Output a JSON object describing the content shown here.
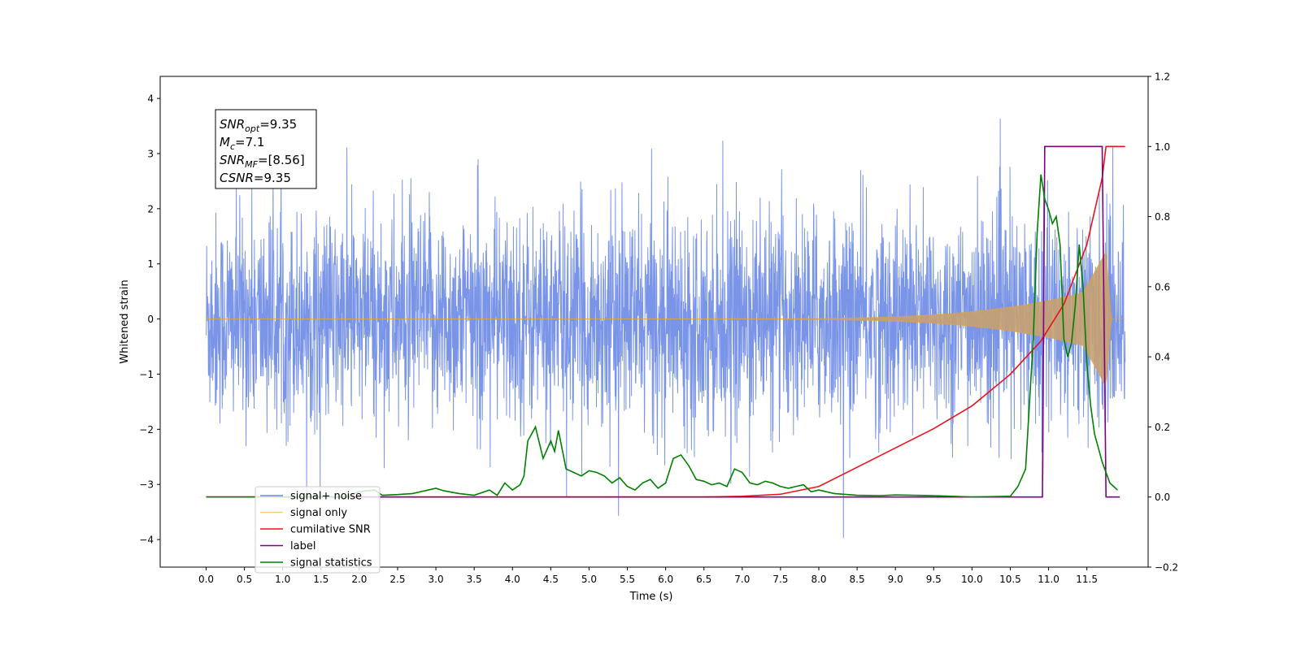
{
  "chart_data": {
    "type": "line",
    "xlabel": "Time (s)",
    "ylabel": "Whitened strain",
    "xlim": [
      -0.6,
      12.3
    ],
    "ylim_left": [
      -4.5,
      4.4
    ],
    "ylim_right": [
      -0.2,
      1.2
    ],
    "x_ticks": [
      "0.0",
      "0.5",
      "1.0",
      "1.5",
      "2.0",
      "2.5",
      "3.0",
      "3.5",
      "4.0",
      "4.5",
      "5.0",
      "5.5",
      "6.0",
      "6.5",
      "7.0",
      "7.5",
      "8.0",
      "8.5",
      "9.0",
      "9.5",
      "10.0",
      "10.5",
      "11.0",
      "11.5"
    ],
    "y_ticks_left": [
      "4",
      "3",
      "2",
      "1",
      "0",
      "−1",
      "−2",
      "−3",
      "−4"
    ],
    "y_ticks_right": [
      "1.2",
      "1.0",
      "0.8",
      "0.6",
      "0.4",
      "0.2",
      "0.0",
      "−0.2"
    ],
    "grid": false,
    "legend_position": "lower-left",
    "annotation": {
      "lines": [
        {
          "base": "SNR",
          "sub": "opt",
          "rest": "=9.35"
        },
        {
          "base": "M",
          "sub": "c",
          "rest": "=7.1"
        },
        {
          "base": "SNR",
          "sub": "MF",
          "rest": "=[8.56]"
        },
        {
          "base": "CSNR",
          "sub": "",
          "rest": "=9.35"
        }
      ]
    },
    "series": [
      {
        "name": "signal+ noise",
        "axis": "left",
        "color": "#6b8ae6",
        "kind": "noise",
        "x_range": [
          0,
          12.0
        ],
        "typical_amplitude": 2.0,
        "extreme_range": [
          -4.1,
          3.95
        ]
      },
      {
        "name": "signal only",
        "axis": "left",
        "color": "#ffa500",
        "kind": "chirp",
        "x_range": [
          0,
          12.0
        ],
        "start_growth": 7.5,
        "peak_time": 11.75,
        "peak_amplitude": 1.25
      },
      {
        "name": "cumilative SNR",
        "axis": "right",
        "color": "#e8141c",
        "x": [
          0.0,
          6.5,
          7.0,
          7.5,
          8.0,
          8.5,
          9.0,
          9.5,
          10.0,
          10.5,
          10.9,
          11.2,
          11.5,
          11.7,
          11.75,
          11.8,
          12.0
        ],
        "y": [
          0.0,
          0.0,
          0.002,
          0.008,
          0.03,
          0.085,
          0.14,
          0.195,
          0.26,
          0.35,
          0.445,
          0.55,
          0.72,
          0.91,
          1.0,
          1.0,
          1.0
        ]
      },
      {
        "name": "label",
        "axis": "right",
        "color": "#800080",
        "x": [
          0.0,
          10.92,
          10.95,
          11.7,
          11.75,
          11.93
        ],
        "y": [
          0.0,
          0.0,
          1.0,
          1.0,
          0.0,
          0.0
        ]
      },
      {
        "name": "signal statistics",
        "axis": "right",
        "color": "#008000",
        "x": [
          0.0,
          1.8,
          2.0,
          2.2,
          2.3,
          2.5,
          2.7,
          2.9,
          3.0,
          3.1,
          3.3,
          3.5,
          3.7,
          3.8,
          3.9,
          4.0,
          4.1,
          4.15,
          4.2,
          4.3,
          4.4,
          4.5,
          4.55,
          4.6,
          4.7,
          4.8,
          4.9,
          5.0,
          5.1,
          5.2,
          5.3,
          5.4,
          5.5,
          5.6,
          5.7,
          5.8,
          5.9,
          6.0,
          6.1,
          6.2,
          6.3,
          6.4,
          6.5,
          6.6,
          6.7,
          6.8,
          6.9,
          7.0,
          7.1,
          7.2,
          7.3,
          7.4,
          7.5,
          7.6,
          7.7,
          7.8,
          7.9,
          8.0,
          8.2,
          8.5,
          8.8,
          9.0,
          9.5,
          10.0,
          10.5,
          10.6,
          10.7,
          10.8,
          10.85,
          10.9,
          10.95,
          11.0,
          11.05,
          11.1,
          11.15,
          11.2,
          11.25,
          11.3,
          11.35,
          11.4,
          11.45,
          11.5,
          11.55,
          11.6,
          11.65,
          11.7,
          11.75,
          11.8,
          11.85,
          11.9
        ],
        "y": [
          0.0,
          0.0,
          0.015,
          0.02,
          0.005,
          0.007,
          0.01,
          0.02,
          0.025,
          0.018,
          0.01,
          0.005,
          0.02,
          0.005,
          0.04,
          0.02,
          0.035,
          0.06,
          0.16,
          0.2,
          0.11,
          0.16,
          0.13,
          0.19,
          0.08,
          0.07,
          0.06,
          0.075,
          0.07,
          0.06,
          0.04,
          0.055,
          0.03,
          0.02,
          0.04,
          0.05,
          0.025,
          0.04,
          0.11,
          0.12,
          0.09,
          0.05,
          0.045,
          0.035,
          0.04,
          0.03,
          0.08,
          0.07,
          0.04,
          0.035,
          0.045,
          0.04,
          0.03,
          0.025,
          0.03,
          0.035,
          0.015,
          0.02,
          0.01,
          0.005,
          0.004,
          0.006,
          0.004,
          0.0,
          0.002,
          0.03,
          0.08,
          0.45,
          0.75,
          0.92,
          0.85,
          0.82,
          0.78,
          0.8,
          0.72,
          0.45,
          0.4,
          0.44,
          0.55,
          0.72,
          0.6,
          0.38,
          0.26,
          0.18,
          0.14,
          0.1,
          0.07,
          0.04,
          0.03,
          0.02
        ]
      }
    ]
  }
}
